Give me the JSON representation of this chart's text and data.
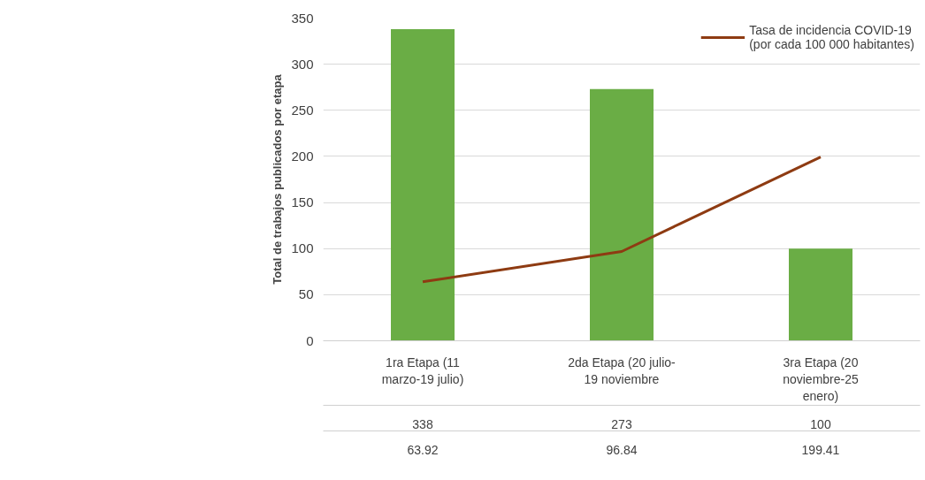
{
  "chart_data": {
    "type": "bar",
    "ylabel": "Total de trabajos publicados por etapa",
    "categories": [
      "1ra Etapa (11\nmarzo-19 julio)",
      "2da Etapa (20 julio-\n19 noviembre",
      "3ra Etapa (20\nnoviembre-25\nenero)"
    ],
    "series": [
      {
        "color": "#6aad45",
        "values": [
          338,
          273,
          100
        ]
      },
      {
        "name": "Tasa de incidencia COVID-19\n(por cada 100 000 habitantes)",
        "type": "line",
        "color": "#8e3b12",
        "values": [
          63.92,
          96.84,
          199.41
        ]
      }
    ],
    "ylim": [
      0,
      350
    ],
    "yticks": [
      0,
      50,
      100,
      150,
      200,
      250,
      300,
      350
    ],
    "grid": "y",
    "legend": "top right",
    "data_labels": true
  }
}
